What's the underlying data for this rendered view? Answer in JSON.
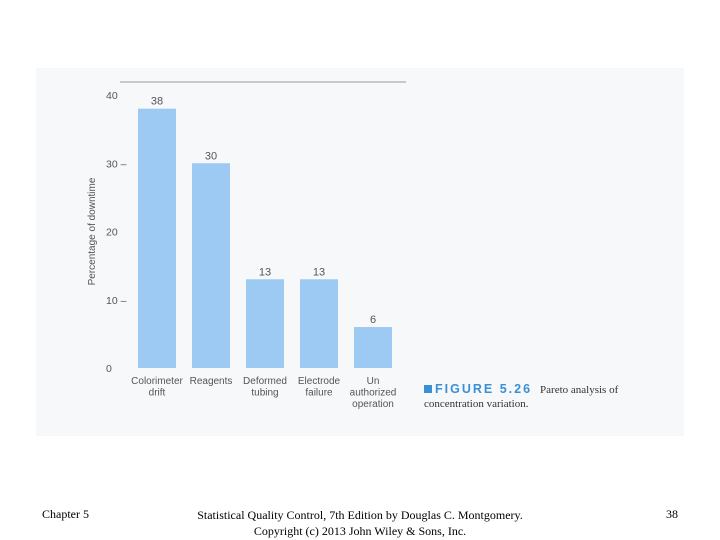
{
  "chart_data": {
    "type": "bar",
    "categories": [
      [
        "Colorimeter",
        "drift"
      ],
      [
        "Reagents"
      ],
      [
        "Deformed",
        "tubing"
      ],
      [
        "Electrode",
        "failure"
      ],
      [
        "Un",
        "authorized",
        "operation"
      ]
    ],
    "values": [
      38,
      30,
      13,
      13,
      6
    ],
    "data_labels": [
      "38",
      "30",
      "13",
      "13",
      "6"
    ],
    "ylabel": "Percentage of downtime",
    "ylim": [
      0,
      40
    ],
    "y_ticks": [
      {
        "value": 0,
        "label": "0"
      },
      {
        "value": 10,
        "label": "10 –"
      },
      {
        "value": 20,
        "label": "20"
      },
      {
        "value": 30,
        "label": "30 –"
      },
      {
        "value": 40,
        "label": "40"
      }
    ],
    "bar_color": "#9ccaf2",
    "grid": false
  },
  "caption": {
    "figure_label": "FIGURE 5.26",
    "text_line1": "Pareto analysis of",
    "text_line2": "concentration variation.",
    "accent_color": "#3a8fd6"
  },
  "footer": {
    "left": "Chapter 5",
    "center_line1": "Statistical Quality Control, 7th Edition by Douglas C. Montgomery.",
    "center_line2": "Copyright (c) 2013 John Wiley & Sons, Inc.",
    "right": "38"
  }
}
